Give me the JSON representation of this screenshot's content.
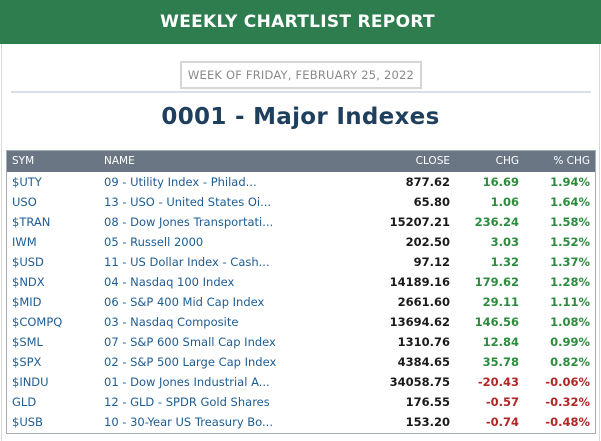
{
  "header": {
    "title": "WEEKLY CHARTLIST REPORT"
  },
  "week_label": "WEEK OF FRIDAY, FEBRUARY 25, 2022",
  "list_title": "0001 - Major Indexes",
  "table": {
    "columns": [
      "SYM",
      "NAME",
      "CLOSE",
      "CHG",
      "% CHG"
    ],
    "rows": [
      {
        "sym": "$UTY",
        "name": "09 - Utility Index - Philad...",
        "close": "877.62",
        "chg": "16.69",
        "pct": "1.94%",
        "dir": "pos"
      },
      {
        "sym": "USO",
        "name": "13 - USO - United States Oi...",
        "close": "65.80",
        "chg": "1.06",
        "pct": "1.64%",
        "dir": "pos"
      },
      {
        "sym": "$TRAN",
        "name": "08 - Dow Jones Transportati...",
        "close": "15207.21",
        "chg": "236.24",
        "pct": "1.58%",
        "dir": "pos"
      },
      {
        "sym": "IWM",
        "name": "05 - Russell 2000",
        "close": "202.50",
        "chg": "3.03",
        "pct": "1.52%",
        "dir": "pos"
      },
      {
        "sym": "$USD",
        "name": "11 - US Dollar Index - Cash...",
        "close": "97.12",
        "chg": "1.32",
        "pct": "1.37%",
        "dir": "pos"
      },
      {
        "sym": "$NDX",
        "name": "04 - Nasdaq 100 Index",
        "close": "14189.16",
        "chg": "179.62",
        "pct": "1.28%",
        "dir": "pos"
      },
      {
        "sym": "$MID",
        "name": "06 - S&P 400 Mid Cap Index",
        "close": "2661.60",
        "chg": "29.11",
        "pct": "1.11%",
        "dir": "pos"
      },
      {
        "sym": "$COMPQ",
        "name": "03 - Nasdaq Composite",
        "close": "13694.62",
        "chg": "146.56",
        "pct": "1.08%",
        "dir": "pos"
      },
      {
        "sym": "$SML",
        "name": "07 - S&P 600 Small Cap Index",
        "close": "1310.76",
        "chg": "12.84",
        "pct": "0.99%",
        "dir": "pos"
      },
      {
        "sym": "$SPX",
        "name": "02 - S&P 500 Large Cap Index",
        "close": "4384.65",
        "chg": "35.78",
        "pct": "0.82%",
        "dir": "pos"
      },
      {
        "sym": "$INDU",
        "name": "01 - Dow Jones Industrial A...",
        "close": "34058.75",
        "chg": "-20.43",
        "pct": "-0.06%",
        "dir": "neg"
      },
      {
        "sym": "GLD",
        "name": "12 - GLD - SPDR Gold Shares",
        "close": "176.55",
        "chg": "-0.57",
        "pct": "-0.32%",
        "dir": "neg"
      },
      {
        "sym": "$USB",
        "name": "10 - 30-Year US Treasury Bo...",
        "close": "153.20",
        "chg": "-0.74",
        "pct": "-0.48%",
        "dir": "neg"
      }
    ]
  },
  "colors": {
    "header_bg": "#2e7d4f",
    "table_header_bg": "#6b7685",
    "link": "#1d5c93",
    "positive": "#2e8b3e",
    "negative": "#b12626",
    "title": "#1f3f5e"
  }
}
